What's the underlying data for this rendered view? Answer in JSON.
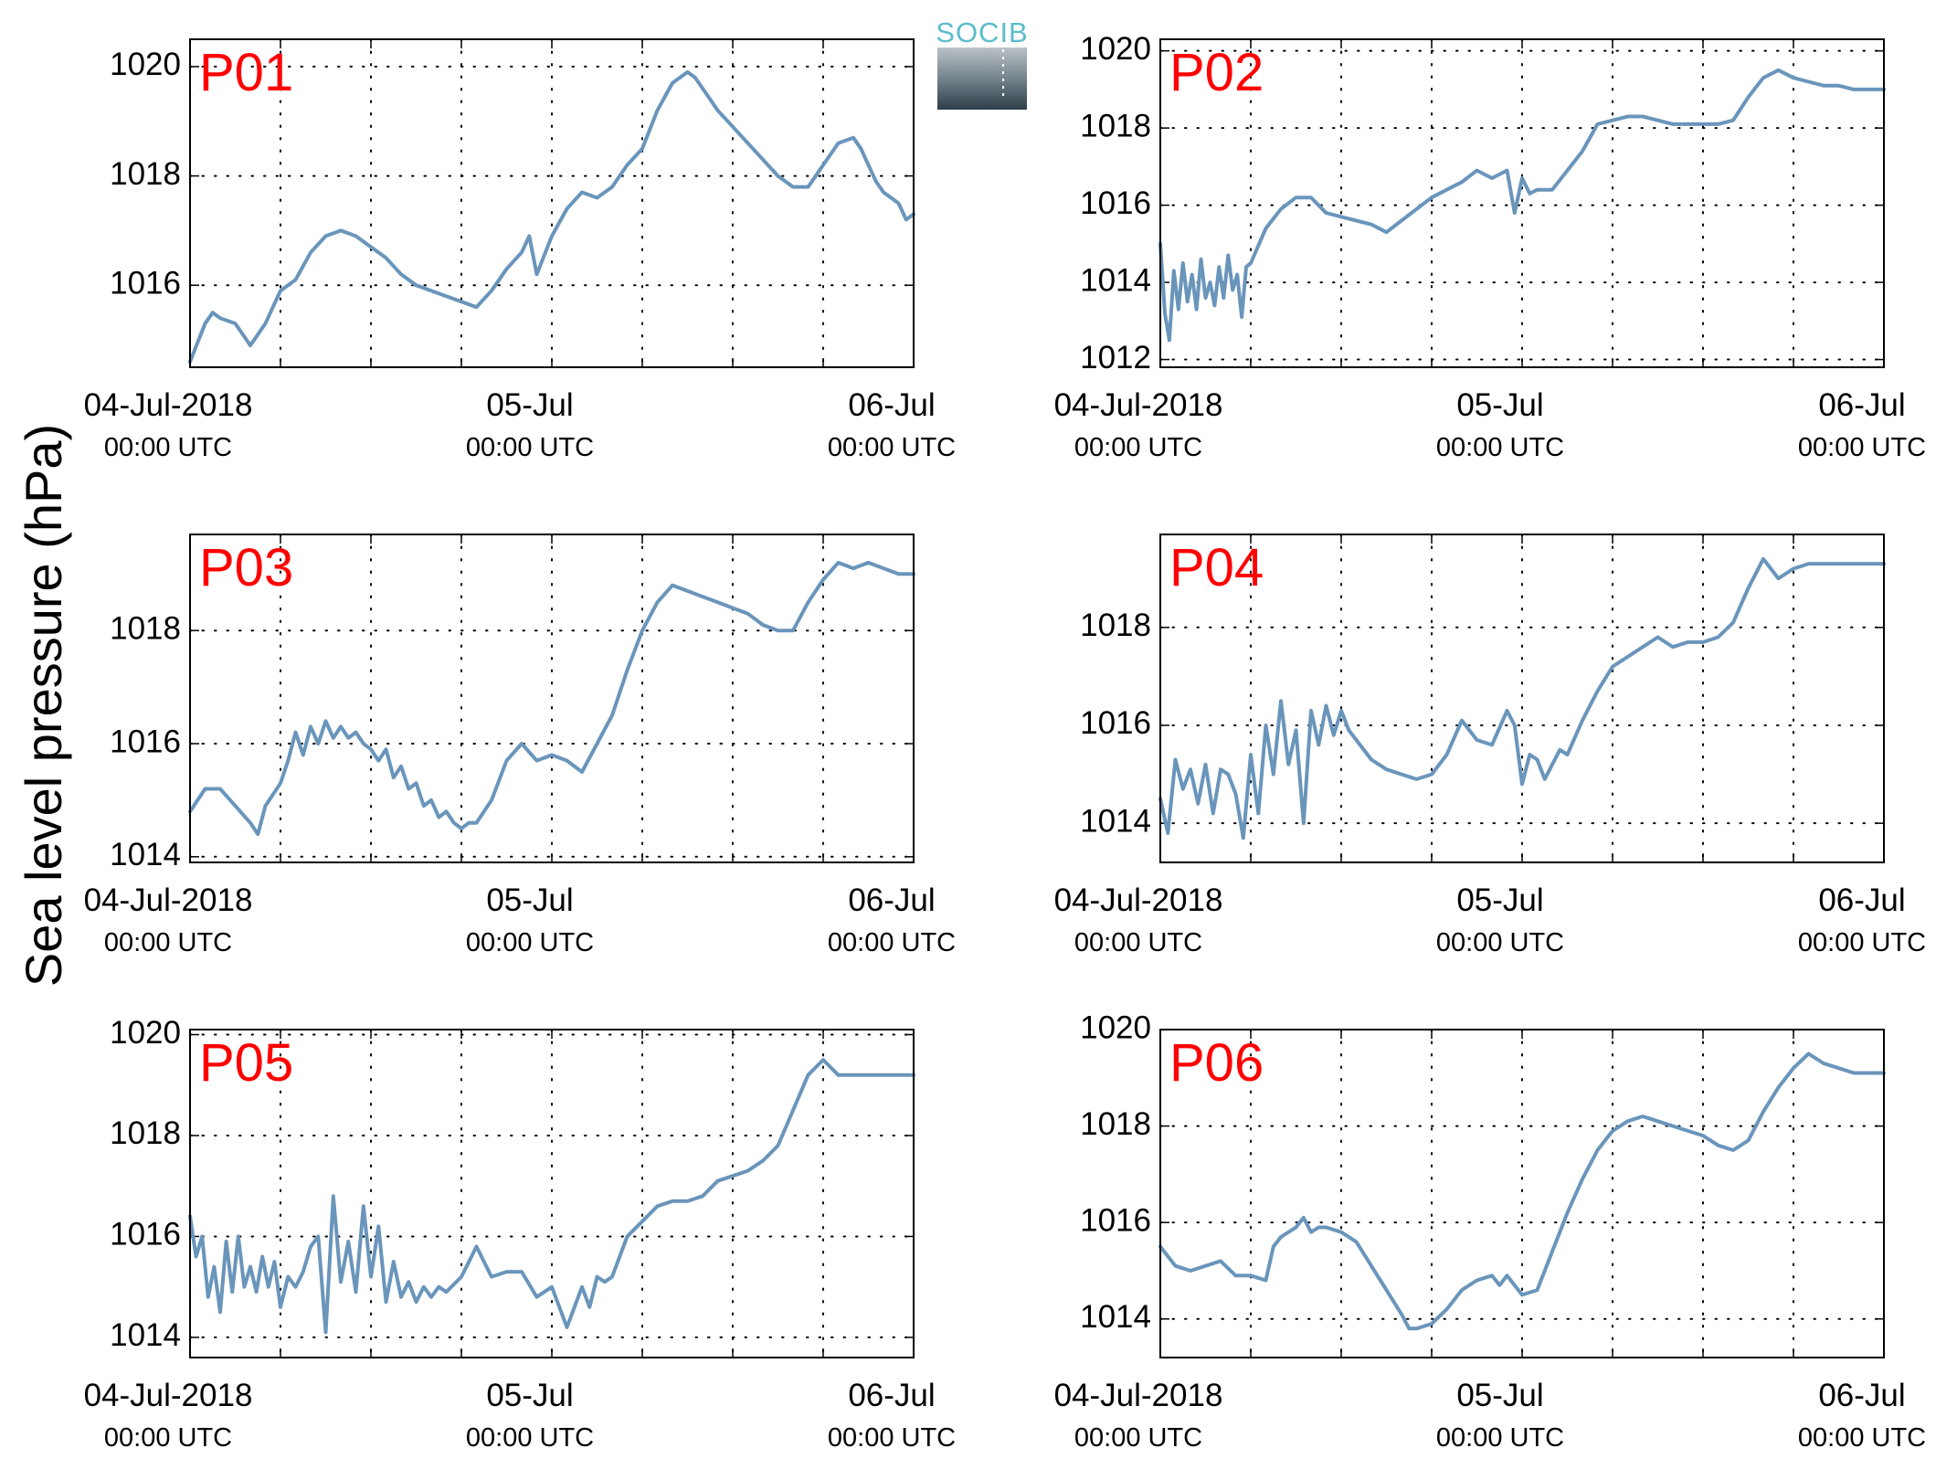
{
  "figure": {
    "ylabel": "Sea level pressure (hPa)",
    "logo_text": "SOCIB",
    "x_tick_labels": [
      {
        "top": "04-Jul-2018",
        "bottom": "00:00 UTC"
      },
      {
        "top": "05-Jul",
        "bottom": "00:00 UTC"
      },
      {
        "top": "06-Jul",
        "bottom": "00:00 UTC"
      }
    ]
  },
  "chart_data": [
    {
      "type": "line",
      "title": "P01",
      "x_unit": "hours since 04-Jul-2018 00:00 UTC",
      "xlim": [
        0,
        48
      ],
      "ylim": [
        1014.5,
        1020.5
      ],
      "yticks": [
        1016,
        1018,
        1020
      ],
      "grid": true,
      "color": "#6a95bb",
      "x": [
        0,
        1,
        1.5,
        2,
        3,
        3.5,
        4,
        5,
        6,
        7,
        8,
        9,
        10,
        11,
        12,
        13,
        14,
        15,
        16,
        17,
        18,
        19,
        20,
        20.5,
        21,
        22,
        22.5,
        23,
        24,
        25,
        26,
        27,
        28,
        29,
        30,
        31,
        32,
        33,
        33.5,
        34,
        35,
        36,
        37,
        38,
        39,
        40,
        41,
        41.5,
        42,
        43,
        44,
        44.5,
        45,
        45.5,
        46,
        47,
        47.5,
        48
      ],
      "y": [
        1014.6,
        1015.3,
        1015.5,
        1015.4,
        1015.3,
        1015.1,
        1014.9,
        1015.3,
        1015.9,
        1016.1,
        1016.6,
        1016.9,
        1017.0,
        1016.9,
        1016.7,
        1016.5,
        1016.2,
        1016.0,
        1015.9,
        1015.8,
        1015.7,
        1015.6,
        1015.9,
        1016.1,
        1016.3,
        1016.6,
        1016.9,
        1016.2,
        1016.9,
        1017.4,
        1017.7,
        1017.6,
        1017.8,
        1018.2,
        1018.5,
        1019.2,
        1019.7,
        1019.9,
        1019.8,
        1019.6,
        1019.2,
        1018.9,
        1018.6,
        1018.3,
        1018.0,
        1017.8,
        1017.8,
        1018.0,
        1018.2,
        1018.6,
        1018.7,
        1018.5,
        1018.2,
        1017.9,
        1017.7,
        1017.5,
        1017.2,
        1017.3
      ]
    },
    {
      "type": "line",
      "title": "P02",
      "x_unit": "hours since 04-Jul-2018 00:00 UTC",
      "xlim": [
        0,
        48
      ],
      "ylim": [
        1011.8,
        1020.3
      ],
      "yticks": [
        1012,
        1014,
        1016,
        1018,
        1020
      ],
      "grid": true,
      "color": "#6a95bb",
      "x": [
        0,
        0.3,
        0.6,
        0.9,
        1.2,
        1.5,
        1.8,
        2.1,
        2.4,
        2.7,
        3,
        3.3,
        3.6,
        3.9,
        4.2,
        4.5,
        4.8,
        5.1,
        5.4,
        5.7,
        6,
        7,
        8,
        9,
        10,
        11,
        12,
        13,
        14,
        15,
        16,
        17,
        18,
        19,
        20,
        21,
        22,
        23,
        23.5,
        24,
        24.5,
        25,
        26,
        27,
        28,
        29,
        30,
        31,
        32,
        33,
        34,
        35,
        36,
        37,
        38,
        39,
        40,
        41,
        42,
        43,
        44,
        45,
        46,
        47,
        48
      ],
      "y": [
        1015.0,
        1013.2,
        1012.5,
        1014.3,
        1013.3,
        1014.5,
        1013.5,
        1014.2,
        1013.3,
        1014.6,
        1013.6,
        1014.0,
        1013.4,
        1014.4,
        1013.6,
        1014.7,
        1013.8,
        1014.2,
        1013.1,
        1014.4,
        1014.5,
        1015.4,
        1015.9,
        1016.2,
        1016.2,
        1015.8,
        1015.7,
        1015.6,
        1015.5,
        1015.3,
        1015.6,
        1015.9,
        1016.2,
        1016.4,
        1016.6,
        1016.9,
        1016.7,
        1016.9,
        1015.8,
        1016.7,
        1016.3,
        1016.4,
        1016.4,
        1016.9,
        1017.4,
        1018.1,
        1018.2,
        1018.3,
        1018.3,
        1018.2,
        1018.1,
        1018.1,
        1018.1,
        1018.1,
        1018.2,
        1018.8,
        1019.3,
        1019.5,
        1019.3,
        1019.2,
        1019.1,
        1019.1,
        1019.0,
        1019.0,
        1019.0
      ]
    },
    {
      "type": "line",
      "title": "P03",
      "x_unit": "hours since 04-Jul-2018 00:00 UTC",
      "xlim": [
        0,
        48
      ],
      "ylim": [
        1013.9,
        1019.7
      ],
      "yticks": [
        1014,
        1016,
        1018
      ],
      "grid": true,
      "color": "#6a95bb",
      "x": [
        0,
        1,
        2,
        3,
        4,
        4.5,
        5,
        6,
        6.5,
        7,
        7.5,
        8,
        8.5,
        9,
        9.5,
        10,
        10.5,
        11,
        11.5,
        12,
        12.5,
        13,
        13.5,
        14,
        14.5,
        15,
        15.5,
        16,
        16.5,
        17,
        17.5,
        18,
        18.5,
        19,
        20,
        21,
        22,
        23,
        24,
        25,
        26,
        27,
        28,
        29,
        30,
        31,
        32,
        33,
        34,
        35,
        36,
        37,
        38,
        39,
        40,
        41,
        42,
        43,
        44,
        45,
        46,
        47,
        48
      ],
      "y": [
        1014.8,
        1015.2,
        1015.2,
        1014.9,
        1014.6,
        1014.4,
        1014.9,
        1015.3,
        1015.7,
        1016.2,
        1015.8,
        1016.3,
        1016.0,
        1016.4,
        1016.1,
        1016.3,
        1016.1,
        1016.2,
        1016.0,
        1015.9,
        1015.7,
        1015.9,
        1015.4,
        1015.6,
        1015.2,
        1015.3,
        1014.9,
        1015.0,
        1014.7,
        1014.8,
        1014.6,
        1014.5,
        1014.6,
        1014.6,
        1015.0,
        1015.7,
        1016.0,
        1015.7,
        1015.8,
        1015.7,
        1015.5,
        1016.0,
        1016.5,
        1017.3,
        1018.0,
        1018.5,
        1018.8,
        1018.7,
        1018.6,
        1018.5,
        1018.4,
        1018.3,
        1018.1,
        1018.0,
        1018.0,
        1018.5,
        1018.9,
        1019.2,
        1019.1,
        1019.2,
        1019.1,
        1019.0,
        1019.0
      ]
    },
    {
      "type": "line",
      "title": "P04",
      "x_unit": "hours since 04-Jul-2018 00:00 UTC",
      "xlim": [
        0,
        48
      ],
      "ylim": [
        1013.2,
        1019.9
      ],
      "yticks": [
        1014,
        1016,
        1018
      ],
      "grid": true,
      "color": "#6a95bb",
      "x": [
        0,
        0.5,
        1,
        1.5,
        2,
        2.5,
        3,
        3.5,
        4,
        4.5,
        5,
        5.5,
        6,
        6.5,
        7,
        7.5,
        8,
        8.5,
        9,
        9.5,
        10,
        10.5,
        11,
        11.5,
        12,
        12.5,
        13,
        14,
        15,
        16,
        17,
        18,
        19,
        20,
        21,
        22,
        23,
        23.5,
        24,
        24.5,
        25,
        25.5,
        26,
        26.5,
        27,
        28,
        29,
        30,
        31,
        32,
        33,
        34,
        35,
        36,
        37,
        38,
        39,
        40,
        41,
        42,
        43,
        44,
        45,
        46,
        47,
        48
      ],
      "y": [
        1014.5,
        1013.8,
        1015.3,
        1014.7,
        1015.1,
        1014.4,
        1015.2,
        1014.2,
        1015.1,
        1015.0,
        1014.6,
        1013.7,
        1015.4,
        1014.2,
        1016.0,
        1015.0,
        1016.5,
        1015.2,
        1015.9,
        1014.0,
        1016.3,
        1015.6,
        1016.4,
        1015.8,
        1016.3,
        1015.9,
        1015.7,
        1015.3,
        1015.1,
        1015.0,
        1014.9,
        1015.0,
        1015.4,
        1016.1,
        1015.7,
        1015.6,
        1016.3,
        1016.0,
        1014.8,
        1015.4,
        1015.3,
        1014.9,
        1015.2,
        1015.5,
        1015.4,
        1016.1,
        1016.7,
        1017.2,
        1017.4,
        1017.6,
        1017.8,
        1017.6,
        1017.7,
        1017.7,
        1017.8,
        1018.1,
        1018.8,
        1019.4,
        1019.0,
        1019.2,
        1019.3,
        1019.3,
        1019.3,
        1019.3,
        1019.3,
        1019.3
      ]
    },
    {
      "type": "line",
      "title": "P05",
      "x_unit": "hours since 04-Jul-2018 00:00 UTC",
      "xlim": [
        0,
        48
      ],
      "ylim": [
        1013.6,
        1020.1
      ],
      "yticks": [
        1014,
        1016,
        1018,
        1020
      ],
      "grid": true,
      "color": "#6a95bb",
      "x": [
        0,
        0.4,
        0.8,
        1.2,
        1.6,
        2,
        2.4,
        2.8,
        3.2,
        3.6,
        4,
        4.4,
        4.8,
        5.2,
        5.6,
        6,
        6.5,
        7,
        7.5,
        8,
        8.5,
        9,
        9.5,
        10,
        10.5,
        11,
        11.5,
        12,
        12.5,
        13,
        13.5,
        14,
        14.5,
        15,
        15.5,
        16,
        16.5,
        17,
        18,
        19,
        20,
        21,
        22,
        23,
        24,
        25,
        26,
        26.5,
        27,
        27.5,
        28,
        29,
        30,
        31,
        32,
        33,
        34,
        35,
        36,
        37,
        38,
        39,
        40,
        41,
        42,
        43,
        44,
        45,
        46,
        47,
        48
      ],
      "y": [
        1016.4,
        1015.6,
        1016.0,
        1014.8,
        1015.4,
        1014.5,
        1015.9,
        1014.9,
        1016.0,
        1015.0,
        1015.4,
        1014.9,
        1015.6,
        1015.0,
        1015.5,
        1014.6,
        1015.2,
        1015.0,
        1015.3,
        1015.8,
        1016.0,
        1014.1,
        1016.8,
        1015.1,
        1015.9,
        1014.9,
        1016.6,
        1015.2,
        1016.2,
        1014.7,
        1015.5,
        1014.8,
        1015.1,
        1014.7,
        1015.0,
        1014.8,
        1015.0,
        1014.9,
        1015.2,
        1015.8,
        1015.2,
        1015.3,
        1015.3,
        1014.8,
        1015.0,
        1014.2,
        1015.0,
        1014.6,
        1015.2,
        1015.1,
        1015.2,
        1016.0,
        1016.3,
        1016.6,
        1016.7,
        1016.7,
        1016.8,
        1017.1,
        1017.2,
        1017.3,
        1017.5,
        1017.8,
        1018.5,
        1019.2,
        1019.5,
        1019.2,
        1019.2,
        1019.2,
        1019.2,
        1019.2,
        1019.2
      ]
    },
    {
      "type": "line",
      "title": "P06",
      "x_unit": "hours since 04-Jul-2018 00:00 UTC",
      "xlim": [
        0,
        48
      ],
      "ylim": [
        1013.2,
        1020.0
      ],
      "yticks": [
        1014,
        1016,
        1018,
        1020
      ],
      "grid": true,
      "color": "#6a95bb",
      "x": [
        0,
        1,
        2,
        3,
        4,
        5,
        6,
        7,
        7.5,
        8,
        9,
        9.5,
        10,
        10.5,
        11,
        12,
        13,
        14,
        15,
        16,
        16.5,
        17,
        18,
        19,
        20,
        21,
        22,
        22.5,
        23,
        24,
        25,
        26,
        27,
        28,
        29,
        30,
        31,
        32,
        33,
        34,
        35,
        36,
        37,
        38,
        39,
        40,
        41,
        42,
        43,
        44,
        45,
        46,
        47,
        48
      ],
      "y": [
        1015.5,
        1015.1,
        1015.0,
        1015.1,
        1015.2,
        1014.9,
        1014.9,
        1014.8,
        1015.5,
        1015.7,
        1015.9,
        1016.1,
        1015.8,
        1015.9,
        1015.9,
        1015.8,
        1015.6,
        1015.1,
        1014.6,
        1014.1,
        1013.8,
        1013.8,
        1013.9,
        1014.2,
        1014.6,
        1014.8,
        1014.9,
        1014.7,
        1014.9,
        1014.5,
        1014.6,
        1015.4,
        1016.2,
        1016.9,
        1017.5,
        1017.9,
        1018.1,
        1018.2,
        1018.1,
        1018.0,
        1017.9,
        1017.8,
        1017.6,
        1017.5,
        1017.7,
        1018.3,
        1018.8,
        1019.2,
        1019.5,
        1019.3,
        1019.2,
        1019.1,
        1019.1,
        1019.1
      ]
    }
  ]
}
